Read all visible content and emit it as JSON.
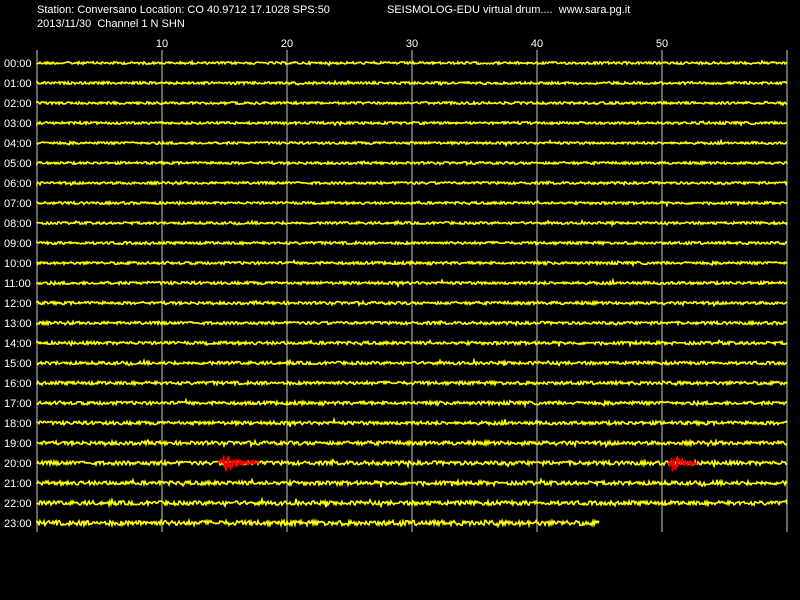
{
  "header": {
    "station_line": "Station: Conversano Location: CO 40.9712 17.1028 SPS:50",
    "title": "SEISMOLOG-EDU virtual drum....  www.sara.pg.it",
    "date_line": "2013/11/30  Channel 1 N SHN"
  },
  "chart_data": {
    "type": "line",
    "title": "SEISMOLOG-EDU virtual drum....  www.sara.pg.it",
    "xlabel": "",
    "ylabel": "",
    "xlim": [
      0,
      60
    ],
    "x_ticks": [
      10,
      20,
      30,
      40,
      50
    ],
    "grid": true,
    "rows": [
      "00:00",
      "01:00",
      "02:00",
      "03:00",
      "04:00",
      "05:00",
      "06:00",
      "07:00",
      "08:00",
      "09:00",
      "10:00",
      "11:00",
      "12:00",
      "13:00",
      "14:00",
      "15:00",
      "16:00",
      "17:00",
      "18:00",
      "19:00",
      "20:00",
      "21:00",
      "22:00",
      "23:00"
    ],
    "row_end_minute": [
      60,
      60,
      60,
      60,
      60,
      60,
      60,
      60,
      60,
      60,
      60,
      60,
      60,
      60,
      60,
      60,
      60,
      60,
      60,
      60,
      60,
      60,
      60,
      45
    ],
    "noise_level": [
      0.6,
      0.6,
      0.6,
      0.6,
      0.6,
      0.6,
      0.6,
      0.6,
      0.6,
      0.7,
      0.7,
      0.8,
      0.8,
      0.8,
      0.9,
      0.9,
      1.0,
      1.0,
      1.1,
      1.2,
      1.3,
      1.3,
      1.4,
      1.8
    ],
    "events": [
      {
        "row": "20:00",
        "start_min": 14.5,
        "end_min": 17.8,
        "color": "#ff0000"
      },
      {
        "row": "20:00",
        "start_min": 50.5,
        "end_min": 52.8,
        "color": "#ff0000"
      }
    ],
    "colors": {
      "trace": "#ffff00",
      "event": "#ff0000",
      "grid": "#c8c8c8",
      "background": "#000000",
      "text": "#ffffff"
    }
  }
}
